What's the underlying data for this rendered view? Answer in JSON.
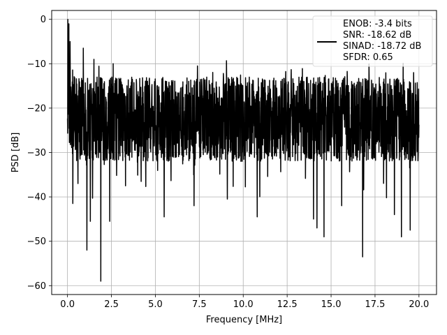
{
  "chart_data": {
    "type": "line",
    "xlabel": "Frequency [MHz]",
    "ylabel": "PSD [dB]",
    "xlim": [
      -0.9,
      21.0
    ],
    "ylim": [
      -62.0,
      2.0
    ],
    "xticks": [
      0.0,
      2.5,
      5.0,
      7.5,
      10.0,
      12.5,
      15.0,
      17.5,
      20.0
    ],
    "xtick_labels": [
      "0.0",
      "2.5",
      "5.0",
      "7.5",
      "10.0",
      "12.5",
      "15.0",
      "17.5",
      "20.0"
    ],
    "yticks": [
      0,
      -10,
      -20,
      -30,
      -40,
      -50,
      -60
    ],
    "ytick_labels": [
      "0",
      "−10",
      "−20",
      "−30",
      "−40",
      "−50",
      "−60"
    ],
    "grid": true,
    "legend_position": "top-right",
    "line_color": "#000000",
    "legend": {
      "lines": [
        "ENOB: -3.4 bits",
        "SNR: -18.62 dB",
        "SINAD: -18.72 dB",
        "SFDR: 0.65"
      ]
    },
    "series": [
      {
        "x_start": 0.0,
        "x_end": 20.0,
        "n_points": 2048,
        "noise_floor_mean_db": -22,
        "noise_envelope_upper_db": -13,
        "noise_envelope_lower_db": -32,
        "dips": [
          {
            "x": 0.3,
            "y": -41.5
          },
          {
            "x": 0.6,
            "y": -37.0
          },
          {
            "x": 1.1,
            "y": -52.0
          },
          {
            "x": 1.3,
            "y": -45.5
          },
          {
            "x": 1.9,
            "y": -59.0
          },
          {
            "x": 2.4,
            "y": -45.5
          },
          {
            "x": 3.3,
            "y": -37.5
          },
          {
            "x": 5.5,
            "y": -44.5
          },
          {
            "x": 7.2,
            "y": -42.0
          },
          {
            "x": 9.1,
            "y": -40.5
          },
          {
            "x": 10.8,
            "y": -44.5
          },
          {
            "x": 14.0,
            "y": -45.0
          },
          {
            "x": 14.2,
            "y": -47.0
          },
          {
            "x": 14.6,
            "y": -49.0
          },
          {
            "x": 15.6,
            "y": -42.0
          },
          {
            "x": 16.8,
            "y": -53.5
          },
          {
            "x": 18.6,
            "y": -44.0
          },
          {
            "x": 19.0,
            "y": -49.0
          },
          {
            "x": 19.5,
            "y": -47.5
          }
        ],
        "peaks": [
          {
            "x": 0.02,
            "y": 0.0
          },
          {
            "x": 0.08,
            "y": -1.0
          },
          {
            "x": 0.15,
            "y": -5.0
          },
          {
            "x": 0.9,
            "y": -6.5
          },
          {
            "x": 1.5,
            "y": -9.0
          },
          {
            "x": 2.6,
            "y": -10.0
          },
          {
            "x": 7.4,
            "y": -10.5
          },
          {
            "x": 19.7,
            "y": -12.0
          }
        ]
      }
    ]
  }
}
